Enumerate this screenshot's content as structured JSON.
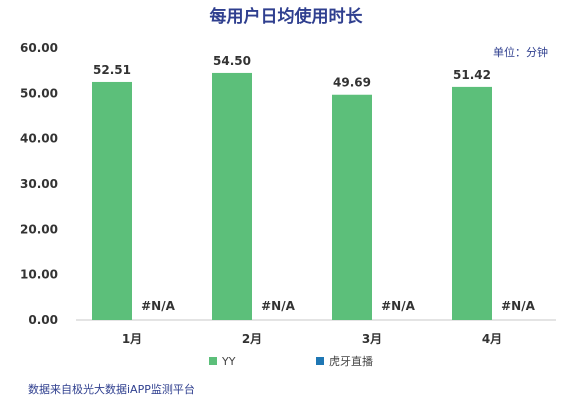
{
  "chart_data": {
    "type": "bar",
    "title": "每用户日均使用时长",
    "unit_label": "单位：分钟",
    "categories": [
      "1月",
      "2月",
      "3月",
      "4月"
    ],
    "series": [
      {
        "name": "YY",
        "color": "#5cbf7a",
        "values": [
          52.51,
          54.5,
          49.69,
          51.42
        ],
        "labels": [
          "52.51",
          "54.50",
          "49.69",
          "51.42"
        ]
      },
      {
        "name": "虎牙直播",
        "color": "#1f77b4",
        "values": [
          null,
          null,
          null,
          null
        ],
        "labels": [
          "#N/A",
          "#N/A",
          "#N/A",
          "#N/A"
        ]
      }
    ],
    "ylim": [
      0,
      60
    ],
    "yticks": [
      "0.00",
      "10.00",
      "20.00",
      "30.00",
      "40.00",
      "50.00",
      "60.00"
    ],
    "grid": false,
    "legend_position": "bottom"
  },
  "source": "数据来自极光大数据iAPP监测平台"
}
